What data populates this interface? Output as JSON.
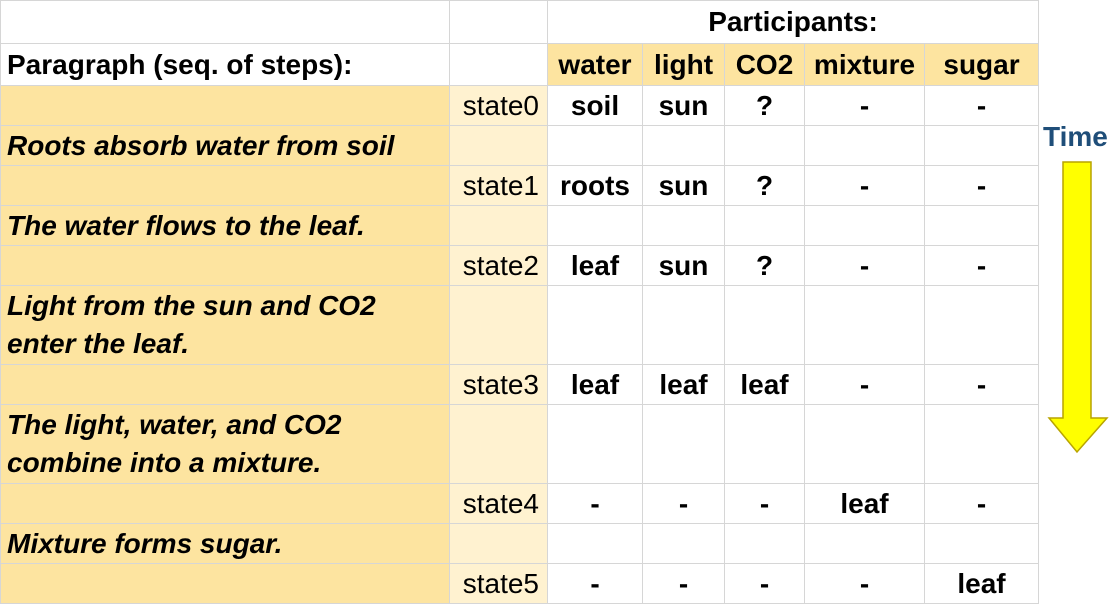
{
  "header": {
    "participants_label": "Participants:",
    "paragraph_label": "Paragraph (seq. of steps):"
  },
  "participants": [
    "water",
    "light",
    "CO2",
    "mixture",
    "sugar"
  ],
  "steps": [
    "Roots absorb water from soil",
    "The water flows to the leaf.",
    "Light from the sun and CO2 enter the leaf.",
    "The light, water, and CO2 combine into a mixture.",
    "Mixture forms sugar."
  ],
  "states": [
    {
      "label": "state0",
      "values": [
        "soil",
        "sun",
        "?",
        "-",
        "-"
      ]
    },
    {
      "label": "state1",
      "values": [
        "roots",
        "sun",
        "?",
        "-",
        "-"
      ]
    },
    {
      "label": "state2",
      "values": [
        "leaf",
        "sun",
        "?",
        "-",
        "-"
      ]
    },
    {
      "label": "state3",
      "values": [
        "leaf",
        "leaf",
        "leaf",
        "-",
        "-"
      ]
    },
    {
      "label": "state4",
      "values": [
        "-",
        "-",
        "-",
        "leaf",
        "-"
      ]
    },
    {
      "label": "state5",
      "values": [
        "-",
        "-",
        "-",
        "-",
        "leaf"
      ]
    }
  ],
  "time_label": "Time",
  "colors": {
    "paragraph_fill": "#fde4a0",
    "state_column_fill": "#fff2d0",
    "participant_header_fill": "#fde4a0",
    "time_label": "#1f4e79",
    "arrow_fill": "#ffff00",
    "arrow_stroke": "#b8a400"
  }
}
